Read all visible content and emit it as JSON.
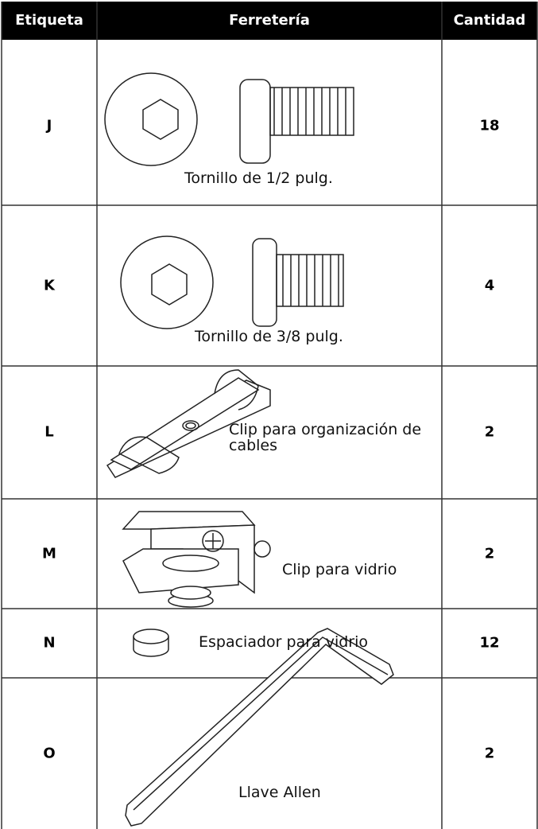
{
  "table": {
    "headers": [
      "Etiqueta",
      "Ferretería",
      "Cantidad"
    ],
    "rows": [
      [
        "J",
        "Tornillo de 1/2 pulg.",
        18
      ],
      [
        "K",
        "Tornillo de 3/8 pulg.",
        4
      ],
      [
        "L",
        "Clip para organización de cables",
        2
      ],
      [
        "M",
        "Clip para vidrio",
        2
      ],
      [
        "N",
        "Espaciador para vidrio",
        12
      ],
      [
        "O",
        "Llave Allen",
        2
      ]
    ]
  }
}
